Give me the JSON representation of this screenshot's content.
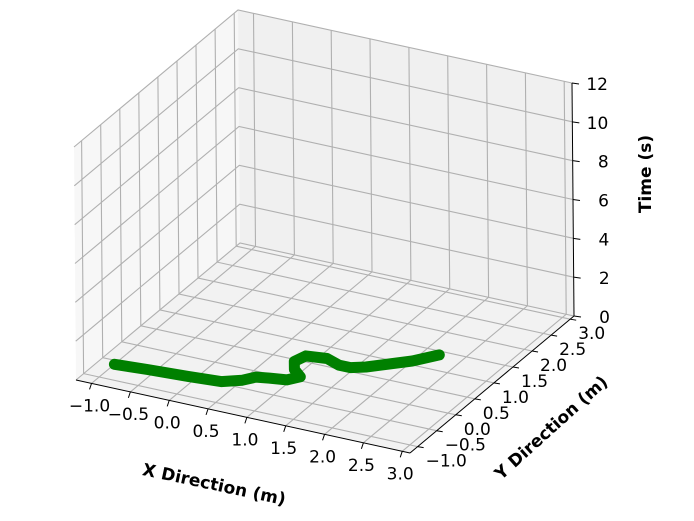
{
  "chart_data": {
    "type": "line3d",
    "title": "",
    "xlabel": "X Direction (m)",
    "ylabel": "Y Direction (m)",
    "zlabel": "Time (s)",
    "xlim": [
      -1.2,
      3.1
    ],
    "ylim": [
      -1.2,
      3.1
    ],
    "zlim": [
      0,
      12
    ],
    "xticks": [
      "−1.0",
      "−0.5",
      "0.0",
      "0.5",
      "1.0",
      "1.5",
      "2.0",
      "2.5",
      "3.0"
    ],
    "yticks": [
      "−1.0",
      "−0.5",
      "0.0",
      "0.5",
      "1.0",
      "1.5",
      "2.0",
      "2.5",
      "3.0"
    ],
    "zticks": [
      "0",
      "2",
      "4",
      "6",
      "8",
      "10",
      "12"
    ],
    "grid": true,
    "series": [
      {
        "color": "#008000",
        "x": [
          -1.0,
          -0.6,
          -0.1,
          0.3,
          0.5,
          0.6,
          0.75,
          0.95,
          1.05,
          0.9,
          0.8,
          0.85,
          1.1,
          1.3,
          1.45,
          1.6,
          1.8,
          2.0,
          2.2
        ],
        "y": [
          -0.6,
          -0.55,
          -0.5,
          -0.45,
          -0.3,
          -0.15,
          -0.1,
          -0.05,
          0.1,
          0.25,
          0.45,
          0.65,
          0.7,
          0.6,
          0.6,
          0.7,
          0.9,
          1.1,
          1.4
        ],
        "z": [
          0,
          0,
          0,
          0,
          0,
          0,
          0,
          0,
          0,
          0,
          0,
          0,
          0,
          0,
          0,
          0,
          0,
          0,
          0
        ]
      }
    ]
  }
}
